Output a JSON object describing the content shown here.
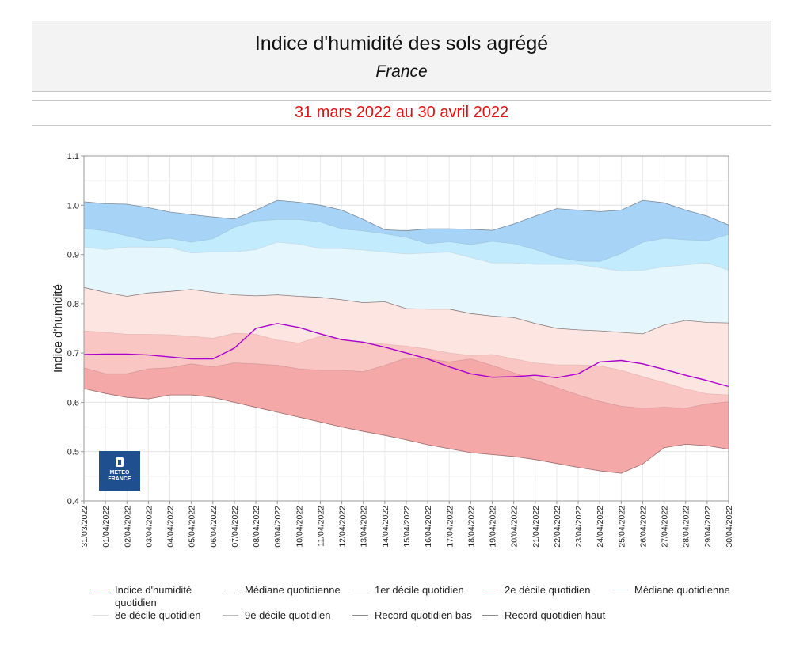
{
  "header": {
    "title": "Indice d'humidité des sols agrégé",
    "subtitle": "France",
    "period": "31 mars 2022 au 30 avril 2022",
    "period_color": "#e01010"
  },
  "logo": {
    "icon": "meteo-france-logo-icon",
    "line1": "METEO",
    "line2": "FRANCE",
    "color": "#1f4f8f"
  },
  "chart_data": {
    "type": "area",
    "ylabel": "Indice d'humidité",
    "xlabel": "",
    "ylim": [
      0.4,
      1.1
    ],
    "yticks": [
      "0.4",
      "0.5",
      "0.6",
      "0.7",
      "0.8",
      "0.9",
      "1.0",
      "1.1"
    ],
    "grid": true,
    "categories": [
      "31/03/2022",
      "01/04/2022",
      "02/04/2022",
      "03/04/2022",
      "04/04/2022",
      "05/04/2022",
      "06/04/2022",
      "07/04/2022",
      "08/04/2022",
      "09/04/2022",
      "10/04/2022",
      "11/04/2022",
      "12/04/2022",
      "13/04/2022",
      "14/04/2022",
      "15/04/2022",
      "16/04/2022",
      "17/04/2022",
      "18/04/2022",
      "19/04/2022",
      "20/04/2022",
      "21/04/2022",
      "22/04/2022",
      "23/04/2022",
      "24/04/2022",
      "25/04/2022",
      "26/04/2022",
      "27/04/2022",
      "28/04/2022",
      "29/04/2022",
      "30/04/2022"
    ],
    "bands": {
      "record_bas": [
        0.628,
        0.618,
        0.61,
        0.607,
        0.615,
        0.615,
        0.61,
        0.6,
        0.59,
        0.58,
        0.57,
        0.56,
        0.55,
        0.541,
        0.533,
        0.524,
        0.514,
        0.506,
        0.498,
        0.494,
        0.49,
        0.484,
        0.476,
        0.468,
        0.461,
        0.456,
        0.475,
        0.508,
        0.515,
        0.512,
        0.505
      ],
      "decile_1": [
        0.67,
        0.658,
        0.658,
        0.668,
        0.67,
        0.678,
        0.672,
        0.68,
        0.678,
        0.675,
        0.668,
        0.665,
        0.665,
        0.662,
        0.675,
        0.69,
        0.688,
        0.682,
        0.688,
        0.675,
        0.66,
        0.645,
        0.63,
        0.615,
        0.602,
        0.592,
        0.588,
        0.59,
        0.588,
        0.597,
        0.601
      ],
      "decile_2": [
        0.745,
        0.742,
        0.738,
        0.738,
        0.737,
        0.734,
        0.73,
        0.74,
        0.738,
        0.726,
        0.72,
        0.734,
        0.727,
        0.722,
        0.718,
        0.714,
        0.708,
        0.7,
        0.695,
        0.697,
        0.688,
        0.68,
        0.676,
        0.676,
        0.674,
        0.665,
        0.652,
        0.64,
        0.627,
        0.617,
        0.615
      ],
      "mediane": [
        0.833,
        0.823,
        0.815,
        0.822,
        0.825,
        0.829,
        0.823,
        0.818,
        0.816,
        0.818,
        0.815,
        0.813,
        0.808,
        0.802,
        0.804,
        0.79,
        0.789,
        0.789,
        0.78,
        0.775,
        0.772,
        0.76,
        0.75,
        0.747,
        0.745,
        0.742,
        0.739,
        0.757,
        0.766,
        0.762,
        0.761
      ],
      "decile_8": [
        0.915,
        0.91,
        0.915,
        0.915,
        0.914,
        0.903,
        0.905,
        0.905,
        0.91,
        0.925,
        0.921,
        0.912,
        0.912,
        0.909,
        0.905,
        0.901,
        0.903,
        0.905,
        0.894,
        0.883,
        0.883,
        0.88,
        0.88,
        0.88,
        0.873,
        0.866,
        0.868,
        0.875,
        0.879,
        0.883,
        0.868
      ],
      "decile_9": [
        0.953,
        0.948,
        0.938,
        0.928,
        0.933,
        0.925,
        0.932,
        0.955,
        0.968,
        0.971,
        0.971,
        0.966,
        0.952,
        0.948,
        0.942,
        0.935,
        0.922,
        0.926,
        0.92,
        0.927,
        0.922,
        0.91,
        0.895,
        0.887,
        0.886,
        0.902,
        0.925,
        0.933,
        0.93,
        0.928,
        0.941
      ],
      "record_haut": [
        1.007,
        1.003,
        1.002,
        0.995,
        0.986,
        0.981,
        0.976,
        0.972,
        0.99,
        1.01,
        1.006,
        1.0,
        0.99,
        0.971,
        0.95,
        0.948,
        0.952,
        0.952,
        0.951,
        0.949,
        0.962,
        0.978,
        0.993,
        0.99,
        0.987,
        0.99,
        1.01,
        1.005,
        0.99,
        0.978,
        0.96
      ]
    },
    "series": [
      {
        "name": "Indice d'humidité quotidien",
        "color": "#aa00cc",
        "values": [
          0.697,
          0.698,
          0.698,
          0.696,
          0.692,
          0.688,
          0.688,
          0.71,
          0.75,
          0.76,
          0.752,
          0.739,
          0.727,
          0.722,
          0.712,
          0.7,
          0.688,
          0.672,
          0.658,
          0.651,
          0.652,
          0.655,
          0.65,
          0.658,
          0.682,
          0.685,
          0.678,
          0.667,
          0.655,
          0.644,
          0.632
        ]
      }
    ],
    "band_colors": {
      "record_bas_decile_1": "#f5a8a8",
      "decile_1_decile_2": "#f9c6c4",
      "decile_2_mediane": "#fde6e2",
      "mediane_decile_8": "#e5f7fd",
      "decile_8_decile_9": "#c2ebfd",
      "decile_9_record_haut": "#a7d3f7"
    },
    "legend": {
      "placement": "bottom",
      "items": [
        {
          "label": "Indice d'humidité quotidien",
          "color": "#aa00cc"
        },
        {
          "label": "Médiane quotidienne",
          "color": "#555555"
        },
        {
          "label": "1er décile quotidien",
          "color": "#bbbbbb"
        },
        {
          "label": "2e décile quotidien",
          "color": "#d9b3b3"
        },
        {
          "label": "Médiane quotidienne",
          "color": "#c7dbe6"
        },
        {
          "label": "8e décile quotidien",
          "color": "#dddddd"
        },
        {
          "label": "9e décile quotidien",
          "color": "#bbbbbb"
        },
        {
          "label": "Record quotidien bas",
          "color": "#888888"
        },
        {
          "label": "Record quotidien haut",
          "color": "#888888"
        }
      ]
    }
  }
}
